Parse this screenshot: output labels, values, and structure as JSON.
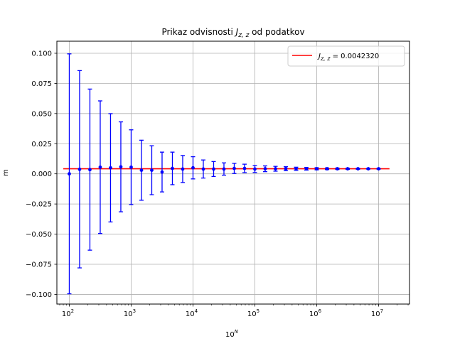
{
  "chart_data": {
    "type": "scatter",
    "title_text": "Prikaz odvisnosti ",
    "title_symbol": "J",
    "title_subscript": "z, z",
    "title_suffix": " od podatkov",
    "xlabel_base": "10",
    "xlabel_exp": "N",
    "ylabel": "m",
    "xscale": "log",
    "xlim": [
      63,
      31600000
    ],
    "ylim": [
      -0.108,
      0.11
    ],
    "grid": true,
    "legend_position": "top-right",
    "x_ticks": [
      {
        "value": 100,
        "exp": "2"
      },
      {
        "value": 1000,
        "exp": "3"
      },
      {
        "value": 10000,
        "exp": "4"
      },
      {
        "value": 100000,
        "exp": "5"
      },
      {
        "value": 1000000,
        "exp": "6"
      },
      {
        "value": 10000000,
        "exp": "7"
      }
    ],
    "y_ticks": [
      {
        "value": -0.1,
        "label": "−0.100"
      },
      {
        "value": -0.075,
        "label": "−0.075"
      },
      {
        "value": -0.05,
        "label": "−0.050"
      },
      {
        "value": -0.025,
        "label": "−0.025"
      },
      {
        "value": 0.0,
        "label": "0.000"
      },
      {
        "value": 0.025,
        "label": "0.025"
      },
      {
        "value": 0.05,
        "label": "0.050"
      },
      {
        "value": 0.075,
        "label": "0.075"
      },
      {
        "value": 0.1,
        "label": "0.100"
      }
    ],
    "series": [
      {
        "name": "",
        "color": "#0000ff",
        "kind": "errorbar",
        "points": [
          {
            "x": 100,
            "y": 0.0,
            "err": 0.0995
          },
          {
            "x": 146.8,
            "y": 0.0038,
            "err": 0.0818
          },
          {
            "x": 215.4,
            "y": 0.0035,
            "err": 0.0668
          },
          {
            "x": 316.2,
            "y": 0.0055,
            "err": 0.055
          },
          {
            "x": 464.2,
            "y": 0.005,
            "err": 0.0449
          },
          {
            "x": 681.3,
            "y": 0.0058,
            "err": 0.0373
          },
          {
            "x": 1000,
            "y": 0.0055,
            "err": 0.031
          },
          {
            "x": 1468,
            "y": 0.003,
            "err": 0.0249
          },
          {
            "x": 2154,
            "y": 0.003,
            "err": 0.0203
          },
          {
            "x": 3162,
            "y": 0.0015,
            "err": 0.0165
          },
          {
            "x": 4642,
            "y": 0.0045,
            "err": 0.0135
          },
          {
            "x": 6813,
            "y": 0.004,
            "err": 0.0112
          },
          {
            "x": 10000,
            "y": 0.005,
            "err": 0.0092
          },
          {
            "x": 14678,
            "y": 0.004,
            "err": 0.0075
          },
          {
            "x": 21544,
            "y": 0.004,
            "err": 0.0062
          },
          {
            "x": 31623,
            "y": 0.004,
            "err": 0.0051
          },
          {
            "x": 46416,
            "y": 0.0045,
            "err": 0.0042
          },
          {
            "x": 68129,
            "y": 0.0045,
            "err": 0.0035
          },
          {
            "x": 100000,
            "y": 0.004,
            "err": 0.0029
          },
          {
            "x": 146780,
            "y": 0.0042,
            "err": 0.0024
          },
          {
            "x": 215440,
            "y": 0.0042,
            "err": 0.002
          },
          {
            "x": 316230,
            "y": 0.0043,
            "err": 0.0016
          },
          {
            "x": 464160,
            "y": 0.0042,
            "err": 0.0013
          },
          {
            "x": 681290,
            "y": 0.0042,
            "err": 0.0011
          },
          {
            "x": 1000000,
            "y": 0.0042,
            "err": 0.0009
          },
          {
            "x": 1467800,
            "y": 0.0042,
            "err": 0.0007
          },
          {
            "x": 2154400,
            "y": 0.0042,
            "err": 0.0006
          },
          {
            "x": 3162300,
            "y": 0.0042,
            "err": 0.0005
          },
          {
            "x": 4641600,
            "y": 0.0042,
            "err": 0.0004
          },
          {
            "x": 6812900,
            "y": 0.0042,
            "err": 0.0003
          },
          {
            "x": 10000000,
            "y": 0.0042,
            "err": 0.0003
          }
        ]
      },
      {
        "name_symbol": "J",
        "name_subscript": "z, z",
        "name_value": " = 0.0042320",
        "color": "#ff0000",
        "kind": "hline",
        "y": 0.004232,
        "x_range": [
          80,
          15000000
        ]
      }
    ]
  }
}
